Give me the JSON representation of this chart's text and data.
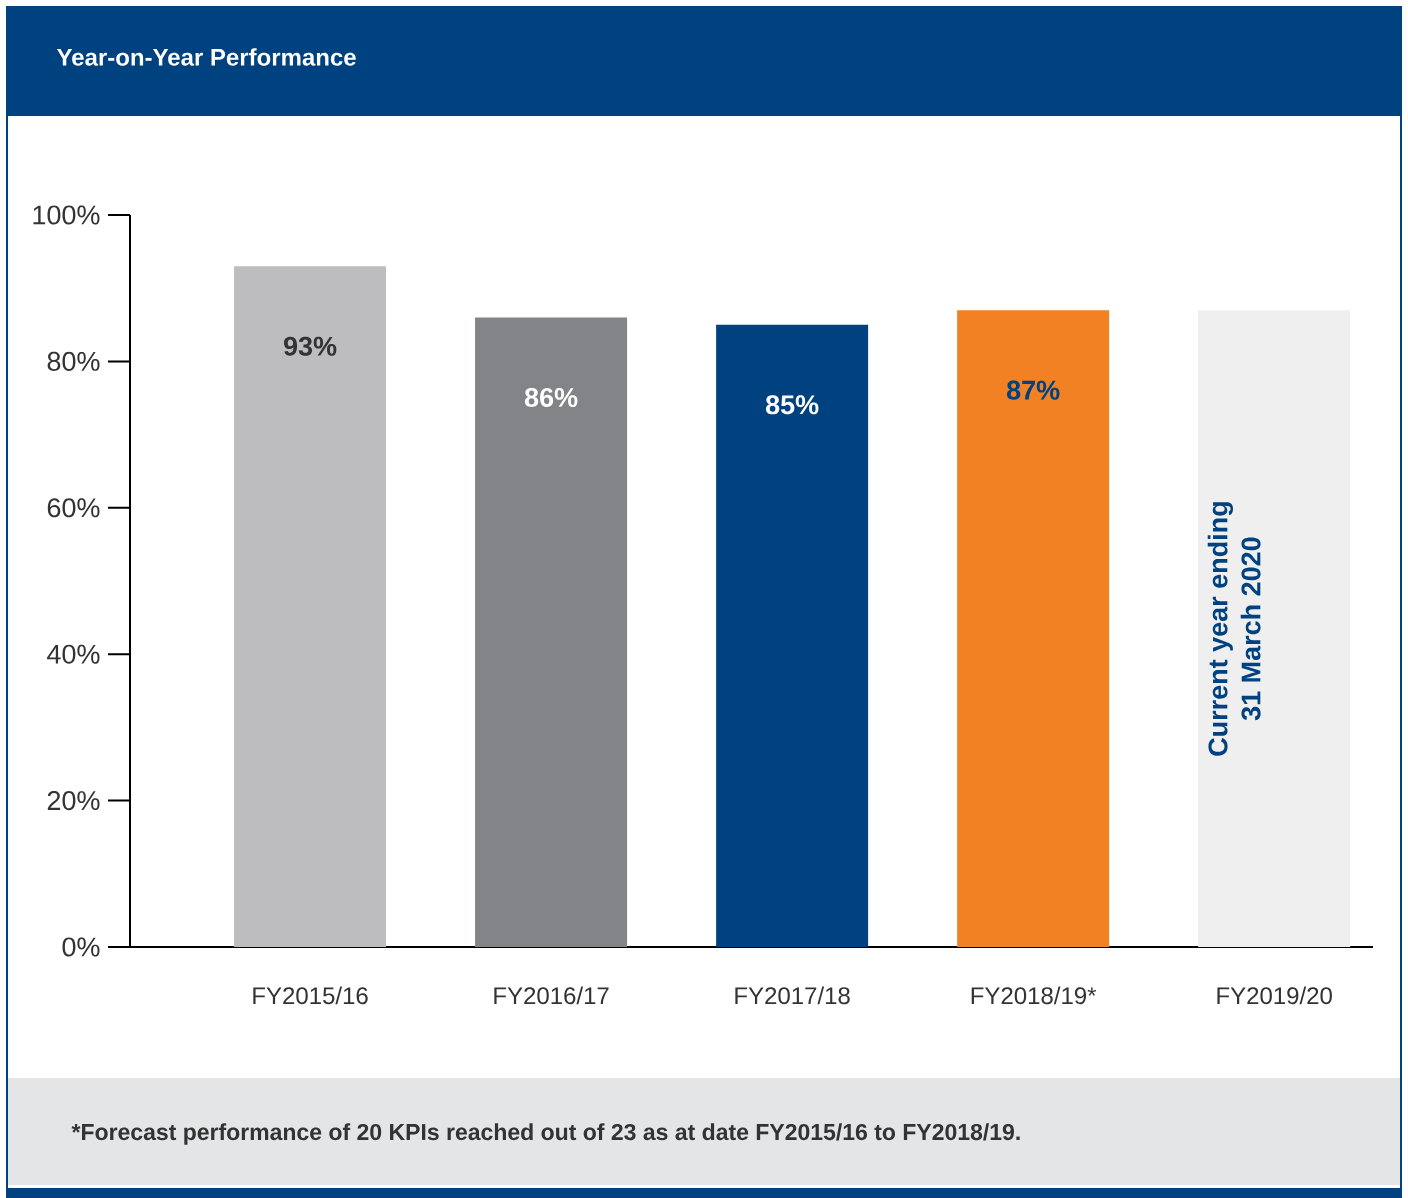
{
  "chart_data": {
    "type": "bar",
    "title": "Year-on-Year Performance",
    "categories": [
      "FY2015/16",
      "FY2016/17",
      "FY2017/18",
      "FY2018/19*",
      "FY2019/20"
    ],
    "values": [
      93,
      86,
      85,
      87,
      87
    ],
    "colors": [
      "#bdbdbf",
      "#838487",
      "#00427f",
      "#f28123",
      "#efefef"
    ],
    "value_labels": [
      "93%",
      "86%",
      "85%",
      "87%",
      null
    ],
    "ylim": [
      0,
      100
    ],
    "yticks": [
      {
        "value": 0,
        "label": "0%"
      },
      {
        "value": 20,
        "label": "20%"
      },
      {
        "value": 40,
        "label": "40%"
      },
      {
        "value": 60,
        "label": "60%"
      },
      {
        "value": 80,
        "label": "80%"
      },
      {
        "value": 100,
        "label": "100%"
      }
    ],
    "annotations": [
      "Current year ending",
      "31 March 2020",
      "*Forecast performance of 20 KPIs reached out of 23 as at date FY2015/16 to FY2018/19."
    ]
  }
}
